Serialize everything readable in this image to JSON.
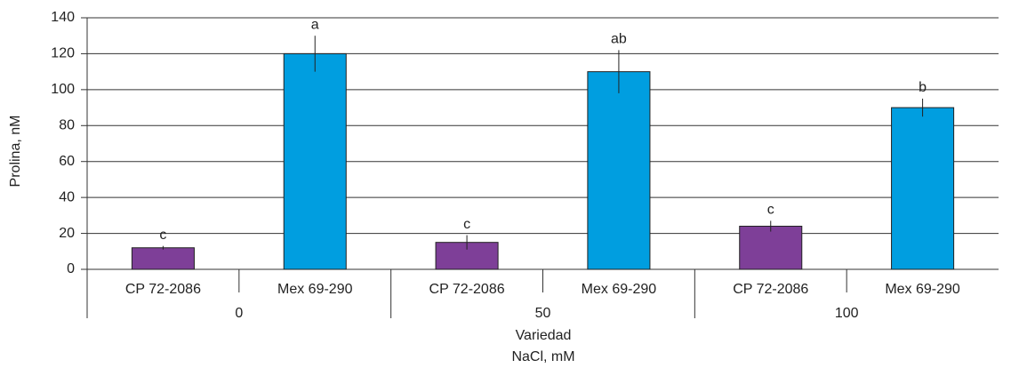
{
  "chart_data": {
    "type": "bar",
    "y_label": "Prolina, nM",
    "x_label": "Variedad",
    "group_label": "NaCl, mM",
    "categories": [
      "CP 72-2086",
      "Mex 69-290",
      "CP 72-2086",
      "Mex 69-290",
      "CP 72-2086",
      "Mex 69-290"
    ],
    "groups": [
      "0",
      "50",
      "100"
    ],
    "values": [
      12,
      120,
      15,
      110,
      24,
      90
    ],
    "errors": [
      1,
      10,
      4,
      12,
      3,
      5
    ],
    "annotations": [
      "c",
      "a",
      "c",
      "ab",
      "c",
      "b"
    ],
    "colors": [
      "#7e3f98",
      "#009ee0",
      "#7e3f98",
      "#009ee0",
      "#7e3f98",
      "#009ee0"
    ],
    "ylim": [
      0,
      140
    ],
    "yticks": [
      0,
      20,
      40,
      60,
      80,
      100,
      120,
      140
    ],
    "grid": true
  }
}
